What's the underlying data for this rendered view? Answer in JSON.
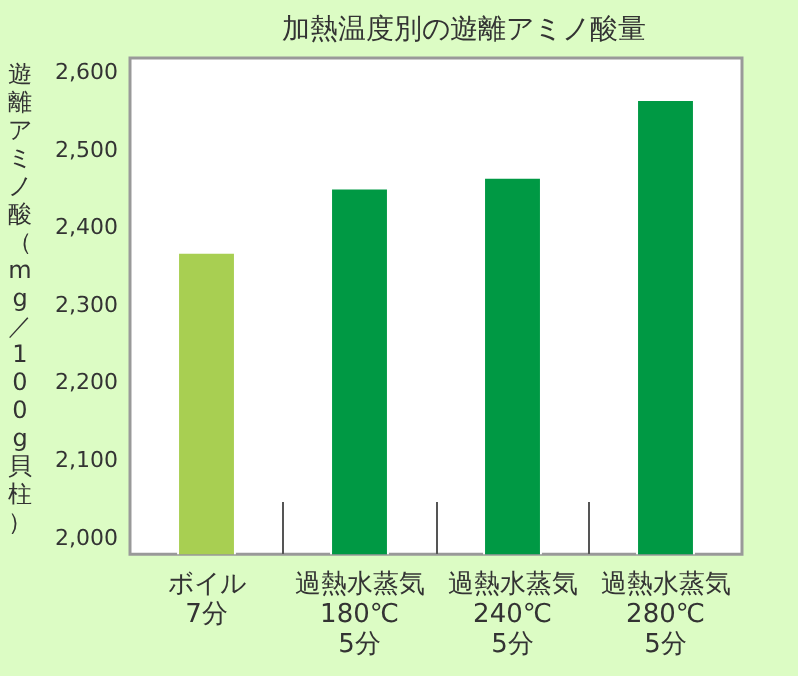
{
  "chart_data": {
    "type": "bar",
    "title": "加熱温度別の遊離アミノ酸量",
    "ylabel": "遊離アミノ酸（mg／100g貝柱）",
    "categories": [
      "ボイル\n7分",
      "過熱水蒸気\n180℃\n5分",
      "過熱水蒸気\n240℃\n5分",
      "過熱水蒸気\n280℃\n5分"
    ],
    "values": [
      2370,
      2453,
      2467,
      2567
    ],
    "colors": [
      "#a8cf52",
      "#009944",
      "#009944",
      "#009944"
    ],
    "ylim": [
      1980,
      2620
    ],
    "yticks": [
      {
        "value": 2000,
        "label": "2,000"
      },
      {
        "value": 2100,
        "label": "2,100"
      },
      {
        "value": 2200,
        "label": "2,200"
      },
      {
        "value": 2300,
        "label": "2,300"
      },
      {
        "value": 2400,
        "label": "2,400"
      },
      {
        "value": 2500,
        "label": "2,500"
      },
      {
        "value": 2600,
        "label": "2,600"
      }
    ]
  }
}
